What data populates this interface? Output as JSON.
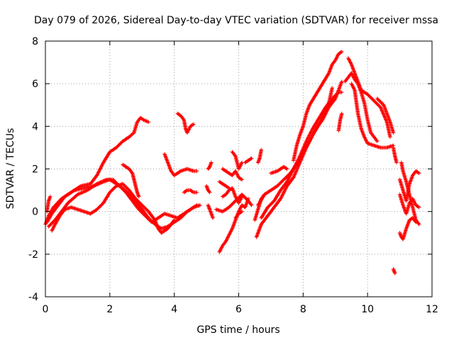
{
  "chart_data": {
    "type": "scatter",
    "title": "Day 079 of 2026, Sidereal Day-to-day VTEC variation (SDTVAR) for receiver mssa",
    "xlabel": "GPS time / hours",
    "ylabel": "SDTVAR / TECUs",
    "xlim": [
      0,
      12
    ],
    "ylim": [
      -4,
      8
    ],
    "xticks": [
      0,
      2,
      4,
      6,
      8,
      10,
      12
    ],
    "yticks": [
      -4,
      -2,
      0,
      2,
      4,
      6,
      8
    ],
    "grid": true,
    "legend": "none",
    "marker": "plus",
    "color": "#ff0000",
    "tracks": [
      [
        [
          0.0,
          -0.6
        ],
        [
          0.1,
          -0.2
        ],
        [
          0.25,
          0.2
        ],
        [
          0.5,
          0.6
        ],
        [
          0.8,
          0.9
        ],
        [
          1.1,
          1.2
        ],
        [
          1.4,
          1.3
        ],
        [
          1.6,
          1.7
        ],
        [
          1.8,
          2.3
        ],
        [
          2.0,
          2.8
        ],
        [
          2.2,
          3.0
        ],
        [
          2.4,
          3.3
        ],
        [
          2.6,
          3.5
        ],
        [
          2.75,
          3.7
        ],
        [
          2.85,
          4.2
        ],
        [
          2.95,
          4.4
        ],
        [
          3.05,
          4.3
        ],
        [
          3.2,
          4.2
        ]
      ],
      [
        [
          0.05,
          -0.5
        ],
        [
          0.2,
          -0.1
        ],
        [
          0.4,
          0.3
        ],
        [
          0.6,
          0.7
        ],
        [
          0.9,
          1.0
        ],
        [
          1.2,
          1.1
        ],
        [
          1.5,
          1.2
        ],
        [
          1.8,
          1.4
        ],
        [
          2.0,
          1.5
        ],
        [
          2.2,
          1.3
        ],
        [
          2.4,
          1.1
        ],
        [
          2.6,
          0.8
        ],
        [
          2.8,
          0.5
        ],
        [
          3.0,
          0.1
        ],
        [
          3.2,
          -0.3
        ],
        [
          3.4,
          -0.6
        ],
        [
          3.6,
          -0.8
        ],
        [
          3.8,
          -0.7
        ],
        [
          4.0,
          -0.5
        ],
        [
          4.2,
          -0.3
        ],
        [
          4.4,
          0.0
        ],
        [
          4.6,
          0.2
        ],
        [
          4.8,
          0.3
        ]
      ],
      [
        [
          0.1,
          -0.7
        ],
        [
          0.3,
          -0.4
        ],
        [
          0.5,
          0.0
        ],
        [
          0.7,
          0.4
        ],
        [
          1.0,
          0.8
        ],
        [
          1.3,
          1.0
        ],
        [
          1.6,
          1.3
        ],
        [
          1.9,
          1.5
        ],
        [
          2.1,
          1.5
        ],
        [
          2.3,
          1.2
        ],
        [
          2.5,
          0.9
        ],
        [
          2.7,
          0.5
        ],
        [
          2.9,
          0.1
        ],
        [
          3.1,
          -0.2
        ],
        [
          3.3,
          -0.5
        ],
        [
          3.5,
          -0.3
        ],
        [
          3.7,
          -0.1
        ],
        [
          3.9,
          -0.2
        ],
        [
          4.1,
          -0.3
        ],
        [
          4.3,
          -0.1
        ],
        [
          4.5,
          0.1
        ],
        [
          4.7,
          0.3
        ]
      ],
      [
        [
          0.2,
          -0.9
        ],
        [
          0.3,
          -0.6
        ],
        [
          0.45,
          -0.2
        ],
        [
          0.6,
          0.1
        ],
        [
          0.8,
          0.2
        ],
        [
          1.0,
          0.1
        ],
        [
          1.2,
          0.0
        ],
        [
          1.4,
          -0.1
        ],
        [
          1.6,
          0.1
        ],
        [
          1.8,
          0.4
        ],
        [
          2.0,
          0.9
        ],
        [
          2.2,
          1.2
        ],
        [
          2.4,
          1.3
        ],
        [
          2.6,
          1.0
        ],
        [
          2.8,
          0.6
        ],
        [
          3.0,
          0.3
        ],
        [
          3.2,
          0.0
        ],
        [
          3.4,
          -0.4
        ],
        [
          3.5,
          -0.8
        ],
        [
          3.6,
          -1.0
        ],
        [
          3.8,
          -0.8
        ],
        [
          4.0,
          -0.4
        ]
      ],
      [
        [
          0.05,
          0.0
        ],
        [
          0.1,
          0.5
        ],
        [
          0.15,
          0.7
        ]
      ],
      [
        [
          2.4,
          2.2
        ],
        [
          2.5,
          2.1
        ],
        [
          2.6,
          2.0
        ],
        [
          2.7,
          1.8
        ],
        [
          2.75,
          1.5
        ],
        [
          2.8,
          1.2
        ],
        [
          2.85,
          0.9
        ],
        [
          2.9,
          0.7
        ]
      ],
      [
        [
          3.7,
          2.7
        ],
        [
          3.8,
          2.3
        ],
        [
          3.9,
          1.9
        ],
        [
          4.0,
          1.7
        ],
        [
          4.2,
          1.9
        ],
        [
          4.4,
          2.0
        ],
        [
          4.6,
          1.9
        ],
        [
          4.7,
          1.9
        ]
      ],
      [
        [
          4.1,
          4.6
        ],
        [
          4.2,
          4.5
        ],
        [
          4.3,
          4.3
        ],
        [
          4.35,
          3.9
        ],
        [
          4.4,
          3.7
        ],
        [
          4.5,
          4.0
        ],
        [
          4.6,
          4.1
        ]
      ],
      [
        [
          4.3,
          0.9
        ],
        [
          4.4,
          1.0
        ],
        [
          4.5,
          1.0
        ],
        [
          4.6,
          0.9
        ],
        [
          4.7,
          0.9
        ]
      ],
      [
        [
          5.05,
          2.0
        ],
        [
          5.1,
          2.1
        ],
        [
          5.15,
          2.3
        ]
      ],
      [
        [
          5.0,
          1.2
        ],
        [
          5.05,
          1.0
        ],
        [
          5.1,
          0.9
        ]
      ],
      [
        [
          5.05,
          0.3
        ],
        [
          5.1,
          0.1
        ],
        [
          5.2,
          -0.3
        ]
      ],
      [
        [
          5.4,
          -1.9
        ],
        [
          5.5,
          -1.6
        ],
        [
          5.6,
          -1.4
        ],
        [
          5.7,
          -1.1
        ],
        [
          5.8,
          -0.8
        ],
        [
          5.9,
          -0.4
        ],
        [
          6.0,
          0.0
        ],
        [
          6.1,
          0.3
        ],
        [
          6.2,
          0.2
        ],
        [
          6.3,
          0.6
        ]
      ],
      [
        [
          5.3,
          0.1
        ],
        [
          5.5,
          0.0
        ],
        [
          5.7,
          0.2
        ],
        [
          5.9,
          0.5
        ],
        [
          6.1,
          0.8
        ],
        [
          6.3,
          0.5
        ],
        [
          6.4,
          0.3
        ]
      ],
      [
        [
          5.5,
          0.7
        ],
        [
          5.6,
          0.8
        ],
        [
          5.7,
          1.0
        ],
        [
          5.8,
          1.1
        ],
        [
          5.9,
          0.7
        ],
        [
          6.0,
          0.4
        ],
        [
          6.1,
          0.7
        ]
      ],
      [
        [
          5.4,
          1.4
        ],
        [
          5.5,
          1.3
        ],
        [
          5.7,
          1.1
        ]
      ],
      [
        [
          5.5,
          2.0
        ],
        [
          5.6,
          1.9
        ],
        [
          5.7,
          1.8
        ],
        [
          5.8,
          1.7
        ],
        [
          5.9,
          1.9
        ],
        [
          6.0,
          1.6
        ],
        [
          6.1,
          1.5
        ]
      ],
      [
        [
          5.8,
          2.8
        ],
        [
          5.9,
          2.6
        ],
        [
          6.0,
          2.0
        ],
        [
          6.1,
          2.3
        ]
      ],
      [
        [
          5.9,
          -0.3
        ],
        [
          6.0,
          -0.1
        ],
        [
          6.1,
          0.0
        ]
      ],
      [
        [
          6.2,
          2.3
        ],
        [
          6.3,
          2.4
        ],
        [
          6.4,
          2.5
        ]
      ],
      [
        [
          6.55,
          -1.2
        ],
        [
          6.7,
          -0.6
        ],
        [
          6.9,
          -0.2
        ],
        [
          7.1,
          0.2
        ],
        [
          7.3,
          0.6
        ],
        [
          7.5,
          1.2
        ],
        [
          7.7,
          1.6
        ],
        [
          7.9,
          2.3
        ],
        [
          8.1,
          3.0
        ],
        [
          8.3,
          3.6
        ],
        [
          8.5,
          4.1
        ],
        [
          8.65,
          4.6
        ],
        [
          8.8,
          5.1
        ],
        [
          8.9,
          5.8
        ]
      ],
      [
        [
          6.7,
          -0.3
        ],
        [
          6.9,
          0.2
        ],
        [
          7.1,
          0.5
        ],
        [
          7.3,
          1.0
        ],
        [
          7.5,
          1.4
        ],
        [
          7.7,
          2.0
        ],
        [
          7.9,
          2.6
        ],
        [
          8.1,
          3.3
        ],
        [
          8.3,
          3.9
        ],
        [
          8.5,
          4.4
        ],
        [
          8.7,
          4.9
        ],
        [
          8.9,
          5.3
        ],
        [
          9.1,
          5.6
        ],
        [
          9.2,
          5.6
        ]
      ],
      [
        [
          6.6,
          0.3
        ],
        [
          6.8,
          0.8
        ],
        [
          7.0,
          1.0
        ],
        [
          7.2,
          1.2
        ],
        [
          7.4,
          1.5
        ],
        [
          7.6,
          1.8
        ],
        [
          7.8,
          2.2
        ],
        [
          8.0,
          2.8
        ],
        [
          8.2,
          3.3
        ],
        [
          8.4,
          3.9
        ],
        [
          8.6,
          4.3
        ],
        [
          8.8,
          4.9
        ],
        [
          9.0,
          5.3
        ],
        [
          9.1,
          5.7
        ],
        [
          9.2,
          6.1
        ]
      ],
      [
        [
          6.5,
          -0.4
        ],
        [
          6.6,
          0.1
        ],
        [
          6.7,
          0.6
        ],
        [
          6.8,
          0.8
        ]
      ],
      [
        [
          6.6,
          2.3
        ],
        [
          6.65,
          2.5
        ],
        [
          6.7,
          2.9
        ]
      ],
      [
        [
          7.0,
          1.8
        ],
        [
          7.2,
          1.9
        ],
        [
          7.4,
          2.1
        ],
        [
          7.5,
          2.0
        ]
      ],
      [
        [
          7.7,
          2.4
        ],
        [
          7.8,
          3.1
        ],
        [
          7.9,
          3.6
        ],
        [
          8.0,
          4.0
        ],
        [
          8.1,
          4.6
        ],
        [
          8.2,
          5.0
        ],
        [
          8.4,
          5.5
        ],
        [
          8.6,
          6.0
        ],
        [
          8.8,
          6.5
        ],
        [
          8.9,
          6.9
        ],
        [
          9.0,
          7.1
        ],
        [
          9.1,
          7.4
        ],
        [
          9.2,
          7.5
        ]
      ],
      [
        [
          9.1,
          3.8
        ],
        [
          9.15,
          4.3
        ],
        [
          9.2,
          4.6
        ]
      ],
      [
        [
          9.3,
          6.1
        ],
        [
          9.4,
          6.3
        ],
        [
          9.5,
          6.5
        ],
        [
          9.6,
          6.2
        ],
        [
          9.7,
          6.0
        ],
        [
          9.8,
          5.6
        ],
        [
          9.9,
          5.1
        ],
        [
          10.0,
          4.3
        ],
        [
          10.1,
          3.7
        ],
        [
          10.2,
          3.5
        ],
        [
          10.3,
          3.3
        ]
      ],
      [
        [
          9.4,
          7.2
        ],
        [
          9.5,
          6.9
        ],
        [
          9.6,
          6.5
        ],
        [
          9.7,
          6.1
        ],
        [
          9.8,
          5.7
        ],
        [
          10.0,
          5.5
        ],
        [
          10.2,
          5.2
        ],
        [
          10.4,
          4.9
        ],
        [
          10.6,
          4.2
        ],
        [
          10.7,
          3.5
        ]
      ],
      [
        [
          9.5,
          6.0
        ],
        [
          9.6,
          5.7
        ],
        [
          9.7,
          4.6
        ],
        [
          9.8,
          3.9
        ],
        [
          9.9,
          3.5
        ],
        [
          10.0,
          3.2
        ],
        [
          10.2,
          3.1
        ],
        [
          10.4,
          3.0
        ],
        [
          10.6,
          3.0
        ],
        [
          10.8,
          3.1
        ]
      ],
      [
        [
          10.3,
          5.3
        ],
        [
          10.5,
          5.0
        ],
        [
          10.7,
          4.2
        ],
        [
          10.8,
          3.7
        ]
      ],
      [
        [
          10.8,
          3.0
        ],
        [
          10.85,
          2.6
        ],
        [
          10.9,
          2.3
        ]
      ],
      [
        [
          10.8,
          -2.7
        ],
        [
          10.85,
          -2.9
        ]
      ],
      [
        [
          11.05,
          2.3
        ],
        [
          11.1,
          1.9
        ],
        [
          11.2,
          1.4
        ],
        [
          11.3,
          0.8
        ],
        [
          11.4,
          0.2
        ],
        [
          11.5,
          -0.4
        ],
        [
          11.6,
          -0.6
        ]
      ],
      [
        [
          11.0,
          1.5
        ],
        [
          11.1,
          1.0
        ],
        [
          11.2,
          0.5
        ],
        [
          11.3,
          1.3
        ],
        [
          11.4,
          1.7
        ],
        [
          11.5,
          1.9
        ],
        [
          11.6,
          1.8
        ]
      ],
      [
        [
          11.0,
          0.8
        ],
        [
          11.1,
          0.3
        ],
        [
          11.2,
          -0.1
        ],
        [
          11.3,
          0.4
        ],
        [
          11.4,
          0.6
        ],
        [
          11.5,
          0.3
        ],
        [
          11.6,
          0.2
        ]
      ],
      [
        [
          11.0,
          -1.0
        ],
        [
          11.05,
          -1.2
        ],
        [
          11.1,
          -1.3
        ],
        [
          11.2,
          -0.8
        ],
        [
          11.3,
          -0.4
        ],
        [
          11.4,
          -0.3
        ],
        [
          11.5,
          -0.5
        ]
      ]
    ]
  }
}
